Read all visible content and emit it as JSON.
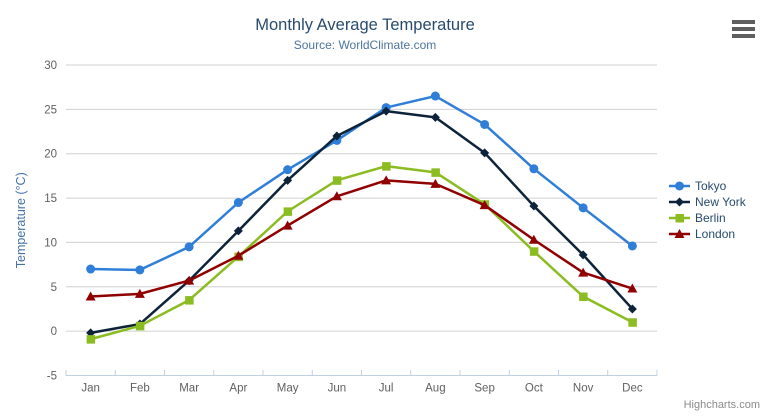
{
  "toolbar": {
    "menu_icon": "hamburger-menu"
  },
  "credits": {
    "label": "Highcharts.com"
  },
  "chart_data": {
    "type": "line",
    "title": "Monthly Average Temperature",
    "subtitle": "Source: WorldClimate.com",
    "xlabel": "",
    "ylabel": "Temperature (°C)",
    "categories": [
      "Jan",
      "Feb",
      "Mar",
      "Apr",
      "May",
      "Jun",
      "Jul",
      "Aug",
      "Sep",
      "Oct",
      "Nov",
      "Dec"
    ],
    "series": [
      {
        "name": "Tokyo",
        "color": "#2f7ed8",
        "marker": "circle",
        "values": [
          7.0,
          6.9,
          9.5,
          14.5,
          18.2,
          21.5,
          25.2,
          26.5,
          23.3,
          18.3,
          13.9,
          9.6
        ]
      },
      {
        "name": "New York",
        "color": "#0d233a",
        "marker": "diamond",
        "values": [
          -0.2,
          0.8,
          5.7,
          11.3,
          17.0,
          22.0,
          24.8,
          24.1,
          20.1,
          14.1,
          8.6,
          2.5
        ]
      },
      {
        "name": "Berlin",
        "color": "#8bbc21",
        "marker": "square",
        "values": [
          -0.9,
          0.6,
          3.5,
          8.4,
          13.5,
          17.0,
          18.6,
          17.9,
          14.3,
          9.0,
          3.9,
          1.0
        ]
      },
      {
        "name": "London",
        "color": "#910000",
        "marker": "triangle",
        "values": [
          3.9,
          4.2,
          5.7,
          8.5,
          11.9,
          15.2,
          17.0,
          16.6,
          14.2,
          10.3,
          6.6,
          4.8
        ]
      }
    ],
    "ylim": [
      -5,
      30
    ],
    "ytick_step": 5,
    "grid": true,
    "legend_position": "right",
    "colors": {
      "title": "#274b6d",
      "subtitle": "#4d759e",
      "axis_labels": "#606060",
      "yaxis_title": "#4572a7",
      "grid_line": "#d0d0d0",
      "axis_line": "#c0d0e0",
      "legend_text": "#274b6d",
      "credits_text": "#8a8a8a"
    }
  }
}
